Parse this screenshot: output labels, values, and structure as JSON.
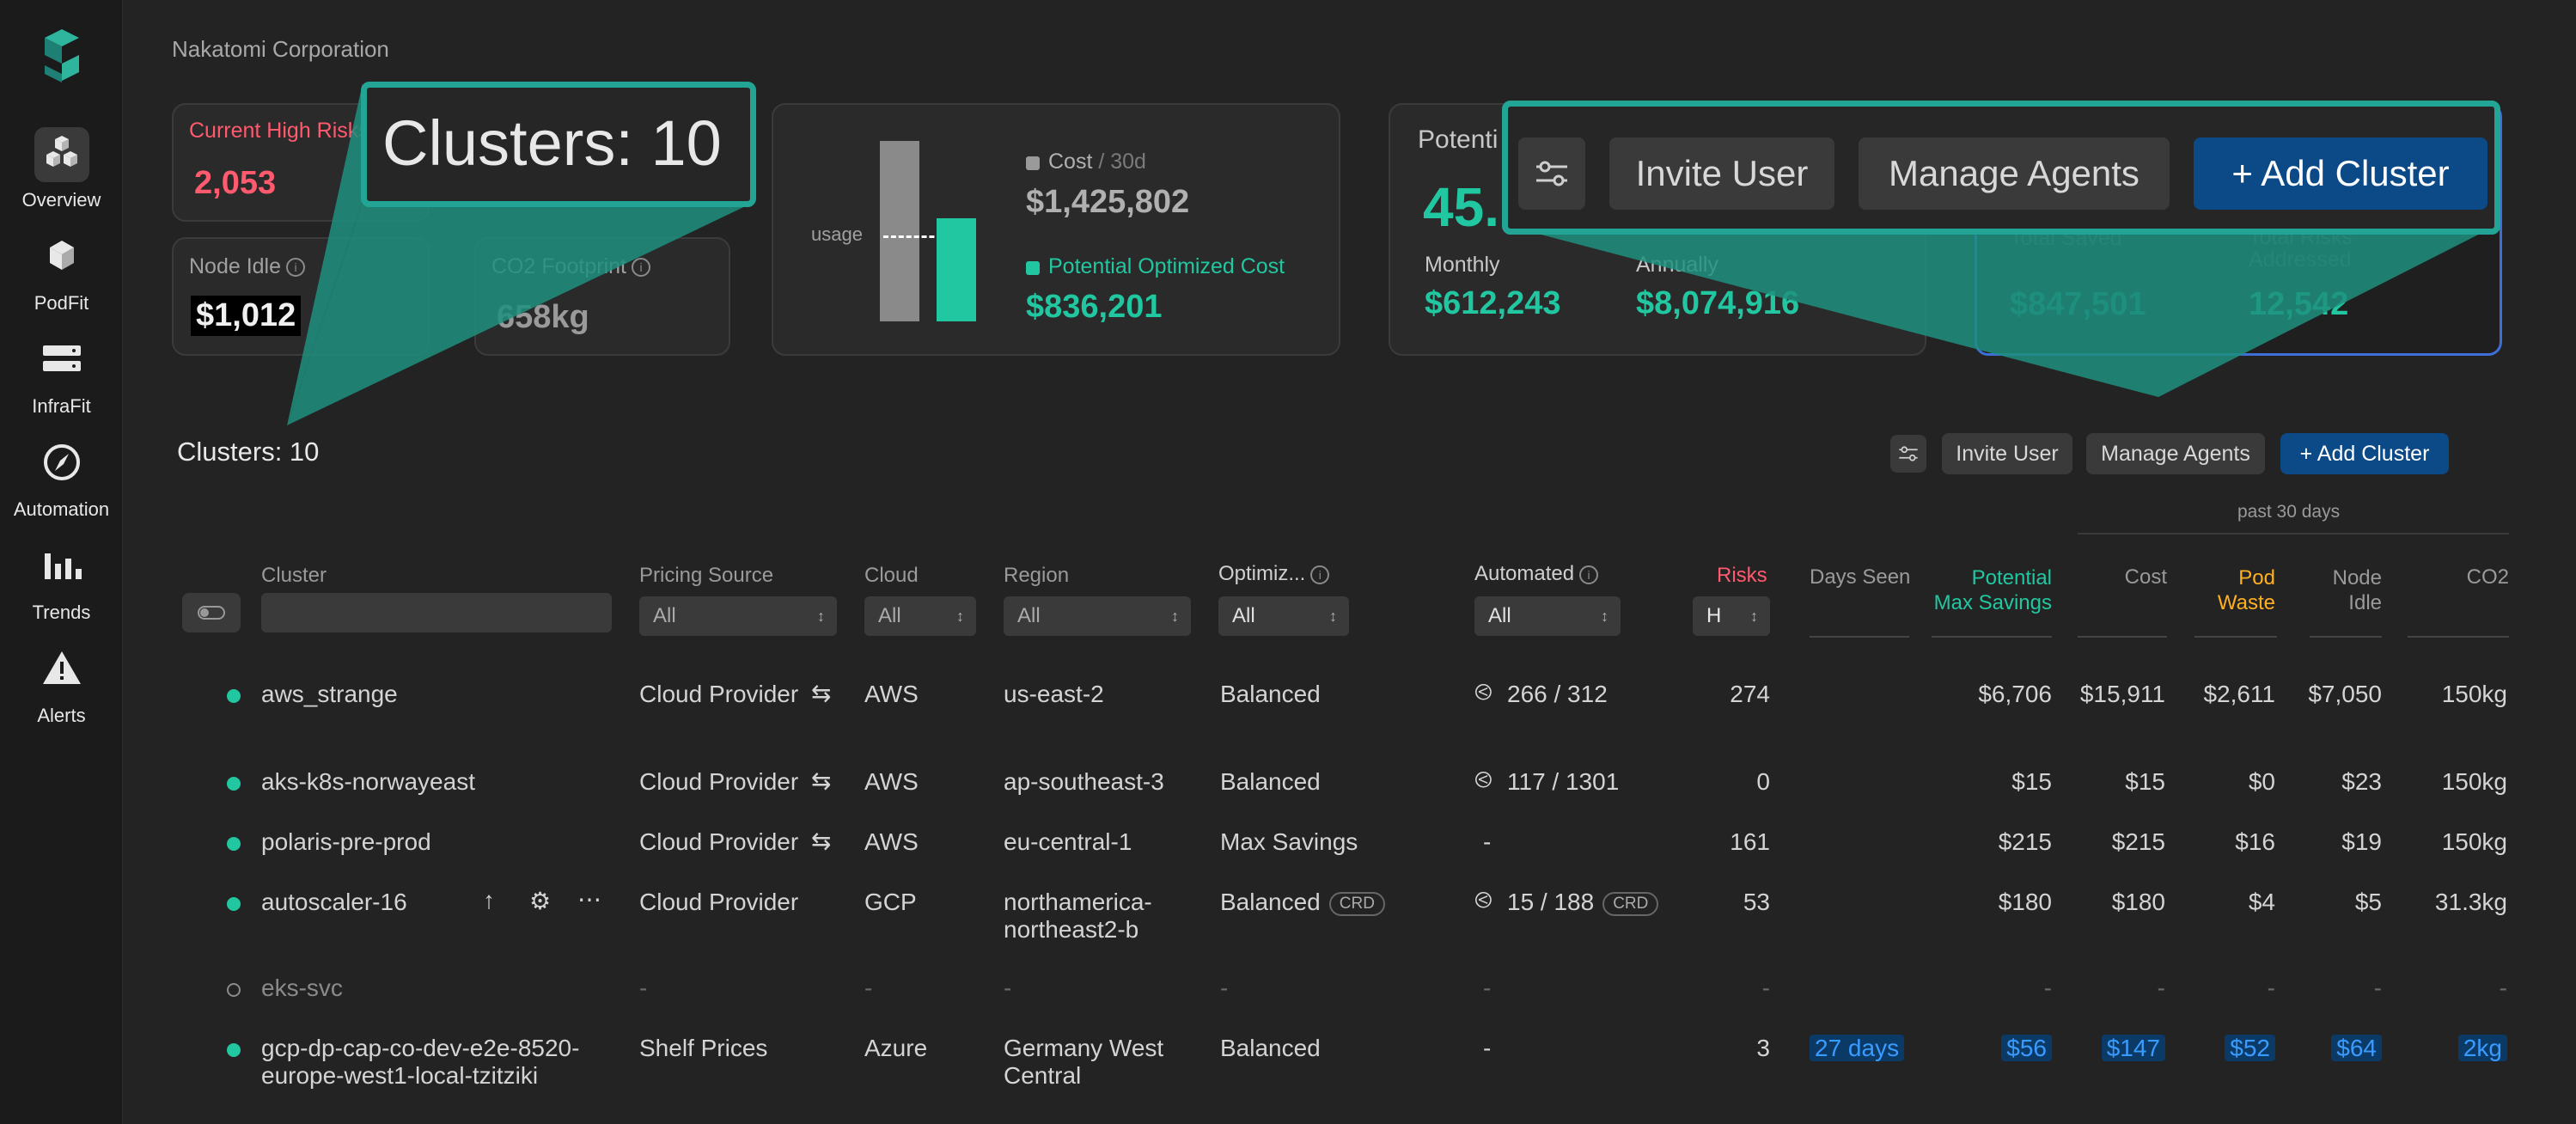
{
  "org": "Nakatomi Corporation",
  "sidebar": [
    {
      "label": "Overview",
      "icon": "cubes-icon"
    },
    {
      "label": "PodFit",
      "icon": "cube-icon"
    },
    {
      "label": "InfraFit",
      "icon": "server-icon"
    },
    {
      "label": "Automation",
      "icon": "compass-icon"
    },
    {
      "label": "Trends",
      "icon": "bar-chart-icon"
    },
    {
      "label": "Alerts",
      "icon": "warning-icon"
    }
  ],
  "cards": {
    "risks_label": "Current High Risks",
    "risks_value": "2,053",
    "node_idle_label": "Node Idle",
    "node_idle_value": "$1,012",
    "co2_label": "CO2 Footprint",
    "co2_value": "658kg",
    "usage_label": "usage",
    "cost_label": "Cost",
    "cost_period": "/ 30d",
    "cost_value": "$1,425,802",
    "opt_label": "Potential Optimized Cost",
    "opt_value": "$836,201",
    "usage_fraction": 0.44,
    "potential_label": "Potenti",
    "potential_value": "45.",
    "monthly_label": "Monthly",
    "monthly_value": "$612,243",
    "annually_label": "Annually",
    "annually_value": "$8,074,916",
    "saved_label": "Total Saved",
    "saved_value": "$847,501",
    "addressed_label": "Total Risks Addressed",
    "addressed_value": "12,542"
  },
  "zoom": {
    "clusters_title": "Clusters: 10",
    "invite": "Invite User",
    "manage": "Manage Agents",
    "add": "+ Add Cluster"
  },
  "toolbar": {
    "title": "Clusters: 10",
    "invite": "Invite User",
    "manage": "Manage Agents",
    "add": "+ Add Cluster"
  },
  "table": {
    "group_label": "past 30 days",
    "headers": {
      "cluster": "Cluster",
      "pricing": "Pricing Source",
      "cloud": "Cloud",
      "region": "Region",
      "optimiz": "Optimiz...",
      "automated": "Automated",
      "risks": "Risks",
      "days_seen": "Days Seen",
      "potential_1": "Potential",
      "potential_2": "Max Savings",
      "cost": "Cost",
      "pod_1": "Pod",
      "pod_2": "Waste",
      "node_1": "Node",
      "node_2": "Idle",
      "co2": "CO2"
    },
    "filters": {
      "pricing": "All",
      "cloud": "All",
      "region": "All",
      "optimiz": "All",
      "automated": "All",
      "risks": "H"
    },
    "rows": [
      {
        "name": "aws_strange",
        "pricing": "Cloud Provider",
        "cloud": "AWS",
        "region": "us-east-2",
        "region2": "",
        "opt": "Balanced",
        "auto": "266 / 312",
        "risks": "274",
        "days": "",
        "potential": "$6,706",
        "cost": "$15,911",
        "pod": "$2,611",
        "node": "$7,050",
        "co2": "150kg"
      },
      {
        "name": "aks-k8s-norwayeast",
        "pricing": "Cloud Provider",
        "cloud": "AWS",
        "region": "ap-southeast-3",
        "region2": "",
        "opt": "Balanced",
        "auto": "117 / 1301",
        "risks": "0",
        "days": "",
        "potential": "$15",
        "cost": "$15",
        "pod": "$0",
        "node": "$23",
        "co2": "150kg"
      },
      {
        "name": "polaris-pre-prod",
        "pricing": "Cloud Provider",
        "cloud": "AWS",
        "region": "eu-central-1",
        "region2": "",
        "opt": "Max Savings",
        "auto": "-",
        "risks": "161",
        "days": "",
        "potential": "$215",
        "cost": "$215",
        "pod": "$16",
        "node": "$19",
        "co2": "150kg"
      },
      {
        "name": "autoscaler-16",
        "pricing": "Cloud Provider",
        "cloud": "GCP",
        "region": "northamerica-",
        "region2": "northeast2-b",
        "opt": "Balanced",
        "opt_tag": "CRD",
        "auto": "15 / 188",
        "auto_tag": "CRD",
        "risks": "53",
        "days": "",
        "potential": "$180",
        "cost": "$180",
        "pod": "$4",
        "node": "$5",
        "co2": "31.3kg"
      },
      {
        "name": "eks-svc",
        "pricing": "-",
        "cloud": "-",
        "region": "-",
        "region2": "",
        "opt": "-",
        "auto": "-",
        "risks": "-",
        "days": "",
        "potential": "-",
        "cost": "-",
        "pod": "-",
        "node": "-",
        "co2": "-"
      },
      {
        "name": "gcp-dp-cap-co-dev-e2e-8520-",
        "name2": "europe-west1-local-tzitziki",
        "pricing": "Shelf Prices",
        "cloud": "Azure",
        "region": "Germany West",
        "region2": "Central",
        "opt": "Balanced",
        "auto": "-",
        "risks": "3",
        "days": "27 days",
        "potential": "$56",
        "cost": "$147",
        "pod": "$52",
        "node": "$64",
        "co2": "2kg"
      }
    ]
  },
  "colors": {
    "accent": "#21c7a0",
    "primary": "#0b4a87",
    "risk": "#ff5a6e",
    "waste": "#ffb020",
    "overlay": "#23a595"
  }
}
